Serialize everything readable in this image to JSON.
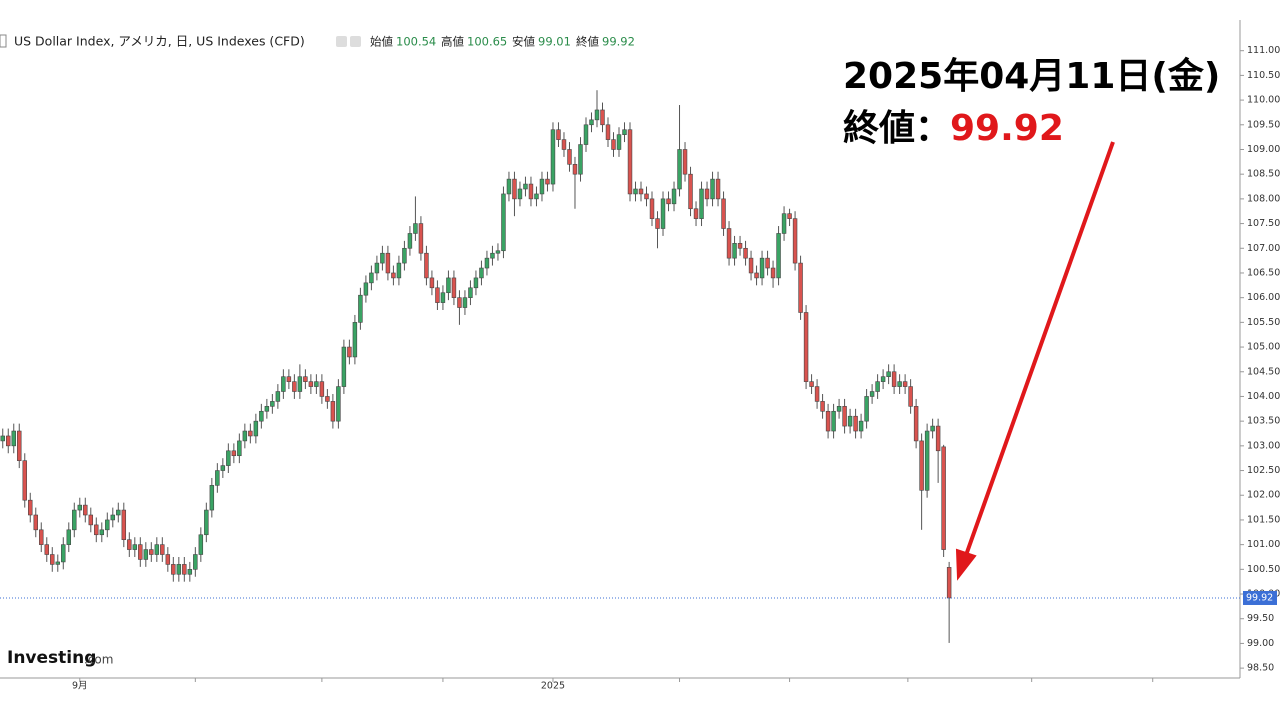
{
  "chart_data": {
    "type": "candlestick",
    "title": "US Dollar Index, アメリカ, 日, US Indexes (CFD)",
    "ohlc_labels": [
      "始値",
      "高値",
      "安値",
      "終値"
    ],
    "annotation": {
      "date": "2025年04月11日(金)",
      "label": "終値："
    },
    "watermark": {
      "name": "Investing",
      "suffix": ".com"
    },
    "up_color": "#3aa364",
    "down_color": "#d9534f",
    "xlim": [
      -0.5,
      224.5
    ],
    "xticks": [
      {
        "value": 14,
        "label": "9月"
      },
      {
        "value": 35,
        "label": null
      },
      {
        "value": 58,
        "label": null
      },
      {
        "value": 80,
        "label": null
      },
      {
        "value": 100,
        "label": "2025"
      },
      {
        "value": 123,
        "label": null
      },
      {
        "value": 143,
        "label": null
      },
      {
        "value": 164.5,
        "label": null
      },
      {
        "value": 187,
        "label": null
      },
      {
        "value": 209,
        "label": null
      }
    ],
    "ylim": [
      98.3,
      111.5
    ],
    "yticks": [
      {
        "value": 98.5,
        "label": "98.50"
      },
      {
        "value": 99,
        "label": "99.00"
      },
      {
        "value": 99.5,
        "label": "99.50"
      },
      {
        "value": 100,
        "label": "100.00"
      },
      {
        "value": 100.5,
        "label": "100.50"
      },
      {
        "value": 101,
        "label": "101.00"
      },
      {
        "value": 101.5,
        "label": "101.50"
      },
      {
        "value": 102,
        "label": "102.00"
      },
      {
        "value": 102.5,
        "label": "102.50"
      },
      {
        "value": 103,
        "label": "103.00"
      },
      {
        "value": 103.5,
        "label": "103.50"
      },
      {
        "value": 104,
        "label": "104.00"
      },
      {
        "value": 104.5,
        "label": "104.50"
      },
      {
        "value": 105,
        "label": "105.00"
      },
      {
        "value": 105.5,
        "label": "105.50"
      },
      {
        "value": 106,
        "label": "106.00"
      },
      {
        "value": 106.5,
        "label": "106.50"
      },
      {
        "value": 107,
        "label": "107.00"
      },
      {
        "value": 107.5,
        "label": "107.50"
      },
      {
        "value": 108,
        "label": "108.00"
      },
      {
        "value": 108.5,
        "label": "108.50"
      },
      {
        "value": 109,
        "label": "109.00"
      },
      {
        "value": 109.5,
        "label": "109.50"
      },
      {
        "value": 110,
        "label": "110.00"
      },
      {
        "value": 110.5,
        "label": "110.50"
      },
      {
        "value": 111,
        "label": "111.00"
      }
    ],
    "candles": [
      [
        103.1,
        103.35,
        102.95,
        103.2
      ],
      [
        103.2,
        103.35,
        102.85,
        103.0
      ],
      [
        103.0,
        103.45,
        102.85,
        103.3
      ],
      [
        103.3,
        103.45,
        102.55,
        102.7
      ],
      [
        102.7,
        102.85,
        101.75,
        101.9
      ],
      [
        101.9,
        102.05,
        101.45,
        101.6
      ],
      [
        101.6,
        101.75,
        101.15,
        101.3
      ],
      [
        101.3,
        101.45,
        100.85,
        101.0
      ],
      [
        101.0,
        101.15,
        100.65,
        100.8
      ],
      [
        100.8,
        100.95,
        100.45,
        100.6
      ],
      [
        100.6,
        100.8,
        100.45,
        100.65
      ],
      [
        100.65,
        101.15,
        100.5,
        101.0
      ],
      [
        101.0,
        101.45,
        100.85,
        101.3
      ],
      [
        101.3,
        101.85,
        101.15,
        101.7
      ],
      [
        101.7,
        101.95,
        101.55,
        101.8
      ],
      [
        101.8,
        101.95,
        101.45,
        101.6
      ],
      [
        101.6,
        101.75,
        101.25,
        101.4
      ],
      [
        101.4,
        101.55,
        101.05,
        101.2
      ],
      [
        101.2,
        101.45,
        101.05,
        101.3
      ],
      [
        101.3,
        101.65,
        101.15,
        101.5
      ],
      [
        101.5,
        101.75,
        101.35,
        101.6
      ],
      [
        101.6,
        101.85,
        101.45,
        101.7
      ],
      [
        101.7,
        101.85,
        100.95,
        101.1
      ],
      [
        101.1,
        101.25,
        100.75,
        100.9
      ],
      [
        100.9,
        101.15,
        100.75,
        101.0
      ],
      [
        101.0,
        101.15,
        100.55,
        100.7
      ],
      [
        100.7,
        101.05,
        100.55,
        100.9
      ],
      [
        100.9,
        101.05,
        100.65,
        100.8
      ],
      [
        100.8,
        101.15,
        100.65,
        101.0
      ],
      [
        101.0,
        101.15,
        100.65,
        100.8
      ],
      [
        100.8,
        100.95,
        100.45,
        100.6
      ],
      [
        100.6,
        100.75,
        100.25,
        100.4
      ],
      [
        100.4,
        100.75,
        100.25,
        100.6
      ],
      [
        100.6,
        100.75,
        100.25,
        100.4
      ],
      [
        100.4,
        100.65,
        100.25,
        100.5
      ],
      [
        100.5,
        100.95,
        100.35,
        100.8
      ],
      [
        100.8,
        101.35,
        100.65,
        101.2
      ],
      [
        101.2,
        101.85,
        101.05,
        101.7
      ],
      [
        101.7,
        102.35,
        101.55,
        102.2
      ],
      [
        102.2,
        102.65,
        102.05,
        102.5
      ],
      [
        102.5,
        102.75,
        102.35,
        102.6
      ],
      [
        102.6,
        103.05,
        102.45,
        102.9
      ],
      [
        102.9,
        103.05,
        102.65,
        102.8
      ],
      [
        102.8,
        103.25,
        102.65,
        103.1
      ],
      [
        103.1,
        103.45,
        102.95,
        103.3
      ],
      [
        103.3,
        103.45,
        103.05,
        103.2
      ],
      [
        103.2,
        103.65,
        103.05,
        103.5
      ],
      [
        103.5,
        103.85,
        103.35,
        103.7
      ],
      [
        103.7,
        103.95,
        103.55,
        103.8
      ],
      [
        103.8,
        104.05,
        103.65,
        103.9
      ],
      [
        103.9,
        104.25,
        103.75,
        104.1
      ],
      [
        104.1,
        104.55,
        103.95,
        104.4
      ],
      [
        104.4,
        104.55,
        104.15,
        104.3
      ],
      [
        104.3,
        104.45,
        103.95,
        104.1
      ],
      [
        104.1,
        104.65,
        103.95,
        104.4
      ],
      [
        104.4,
        104.55,
        104.15,
        104.3
      ],
      [
        104.3,
        104.45,
        104.05,
        104.2
      ],
      [
        104.2,
        104.45,
        104.05,
        104.3
      ],
      [
        104.3,
        104.45,
        103.85,
        104.0
      ],
      [
        104.0,
        104.15,
        103.75,
        103.9
      ],
      [
        103.9,
        104.05,
        103.35,
        103.5
      ],
      [
        103.5,
        104.35,
        103.35,
        104.2
      ],
      [
        104.2,
        105.15,
        104.05,
        105.0
      ],
      [
        105.0,
        105.15,
        104.65,
        104.8
      ],
      [
        104.8,
        105.65,
        104.65,
        105.5
      ],
      [
        105.5,
        106.2,
        105.35,
        106.05
      ],
      [
        106.05,
        106.45,
        105.9,
        106.3
      ],
      [
        106.3,
        106.65,
        106.15,
        106.5
      ],
      [
        106.5,
        106.85,
        106.35,
        106.7
      ],
      [
        106.7,
        107.05,
        106.55,
        106.9
      ],
      [
        106.9,
        107.05,
        106.35,
        106.5
      ],
      [
        106.5,
        106.65,
        106.25,
        106.4
      ],
      [
        106.4,
        106.85,
        106.25,
        106.7
      ],
      [
        106.7,
        107.15,
        106.55,
        107.0
      ],
      [
        107.0,
        107.45,
        106.85,
        107.3
      ],
      [
        107.3,
        108.05,
        107.15,
        107.5
      ],
      [
        107.5,
        107.65,
        106.75,
        106.9
      ],
      [
        106.9,
        107.05,
        106.25,
        106.4
      ],
      [
        106.4,
        106.55,
        106.05,
        106.2
      ],
      [
        106.2,
        106.35,
        105.75,
        105.9
      ],
      [
        105.9,
        106.25,
        105.75,
        106.1
      ],
      [
        106.1,
        106.55,
        105.95,
        106.4
      ],
      [
        106.4,
        106.55,
        105.85,
        106.0
      ],
      [
        106.0,
        106.15,
        105.45,
        105.8
      ],
      [
        105.8,
        106.15,
        105.65,
        106.0
      ],
      [
        106.0,
        106.35,
        105.85,
        106.2
      ],
      [
        106.2,
        106.55,
        106.05,
        106.4
      ],
      [
        106.4,
        106.75,
        106.25,
        106.6
      ],
      [
        106.6,
        106.95,
        106.45,
        106.8
      ],
      [
        106.8,
        107.05,
        106.65,
        106.9
      ],
      [
        106.9,
        107.1,
        106.75,
        106.95
      ],
      [
        106.95,
        108.25,
        106.8,
        108.1
      ],
      [
        108.1,
        108.55,
        107.95,
        108.4
      ],
      [
        108.4,
        108.55,
        107.65,
        108.0
      ],
      [
        108.0,
        108.35,
        107.85,
        108.2
      ],
      [
        108.2,
        108.45,
        108.05,
        108.3
      ],
      [
        108.3,
        108.45,
        107.85,
        108.0
      ],
      [
        108.0,
        108.25,
        107.85,
        108.1
      ],
      [
        108.1,
        108.55,
        107.95,
        108.4
      ],
      [
        108.4,
        108.55,
        108.15,
        108.3
      ],
      [
        108.3,
        109.55,
        108.15,
        109.4
      ],
      [
        109.4,
        109.55,
        109.05,
        109.2
      ],
      [
        109.2,
        109.35,
        108.85,
        109.0
      ],
      [
        109.0,
        109.15,
        108.55,
        108.7
      ],
      [
        108.7,
        108.85,
        107.8,
        108.5
      ],
      [
        108.5,
        109.25,
        108.35,
        109.1
      ],
      [
        109.1,
        109.65,
        108.95,
        109.5
      ],
      [
        109.5,
        109.75,
        109.35,
        109.6
      ],
      [
        109.6,
        110.2,
        109.45,
        109.8
      ],
      [
        109.8,
        109.95,
        109.35,
        109.5
      ],
      [
        109.5,
        109.65,
        109.05,
        109.2
      ],
      [
        109.2,
        109.35,
        108.85,
        109.0
      ],
      [
        109.0,
        109.45,
        108.85,
        109.3
      ],
      [
        109.3,
        109.55,
        109.15,
        109.4
      ],
      [
        109.4,
        109.55,
        107.95,
        108.1
      ],
      [
        108.1,
        108.35,
        107.95,
        108.2
      ],
      [
        108.2,
        108.35,
        107.95,
        108.1
      ],
      [
        108.1,
        108.25,
        107.85,
        108.0
      ],
      [
        108.0,
        108.15,
        107.45,
        107.6
      ],
      [
        107.6,
        107.75,
        107.0,
        107.4
      ],
      [
        107.4,
        108.15,
        107.25,
        108.0
      ],
      [
        108.0,
        108.15,
        107.75,
        107.9
      ],
      [
        107.9,
        108.35,
        107.75,
        108.2
      ],
      [
        108.2,
        109.9,
        108.05,
        109.0
      ],
      [
        109.0,
        109.15,
        108.35,
        108.5
      ],
      [
        108.5,
        108.65,
        107.65,
        107.8
      ],
      [
        107.8,
        107.95,
        107.45,
        107.6
      ],
      [
        107.6,
        108.35,
        107.45,
        108.2
      ],
      [
        108.2,
        108.35,
        107.85,
        108.0
      ],
      [
        108.0,
        108.55,
        107.85,
        108.4
      ],
      [
        108.4,
        108.55,
        107.85,
        108.0
      ],
      [
        108.0,
        108.15,
        107.25,
        107.4
      ],
      [
        107.4,
        107.55,
        106.65,
        106.8
      ],
      [
        106.8,
        107.25,
        106.65,
        107.1
      ],
      [
        107.1,
        107.25,
        106.85,
        107.0
      ],
      [
        107.0,
        107.15,
        106.65,
        106.8
      ],
      [
        106.8,
        106.95,
        106.35,
        106.5
      ],
      [
        106.5,
        106.65,
        106.25,
        106.4
      ],
      [
        106.4,
        106.95,
        106.25,
        106.8
      ],
      [
        106.8,
        106.95,
        106.45,
        106.6
      ],
      [
        106.6,
        106.75,
        106.2,
        106.4
      ],
      [
        106.4,
        107.45,
        106.25,
        107.3
      ],
      [
        107.3,
        107.85,
        107.15,
        107.7
      ],
      [
        107.7,
        107.8,
        107.45,
        107.6
      ],
      [
        107.6,
        107.75,
        106.55,
        106.7
      ],
      [
        106.7,
        106.85,
        105.55,
        105.7
      ],
      [
        105.7,
        105.85,
        104.15,
        104.3
      ],
      [
        104.3,
        104.45,
        104.05,
        104.2
      ],
      [
        104.2,
        104.35,
        103.75,
        103.9
      ],
      [
        103.9,
        104.05,
        103.55,
        103.7
      ],
      [
        103.7,
        103.85,
        103.15,
        103.3
      ],
      [
        103.3,
        103.85,
        103.15,
        103.7
      ],
      [
        103.7,
        103.95,
        103.55,
        103.8
      ],
      [
        103.8,
        103.95,
        103.25,
        103.4
      ],
      [
        103.4,
        103.75,
        103.25,
        103.6
      ],
      [
        103.6,
        103.75,
        103.15,
        103.3
      ],
      [
        103.3,
        103.65,
        103.15,
        103.5
      ],
      [
        103.5,
        104.15,
        103.35,
        104.0
      ],
      [
        104.0,
        104.25,
        103.85,
        104.1
      ],
      [
        104.1,
        104.45,
        103.95,
        104.3
      ],
      [
        104.3,
        104.55,
        104.15,
        104.4
      ],
      [
        104.4,
        104.65,
        104.25,
        104.5
      ],
      [
        104.5,
        104.65,
        104.05,
        104.2
      ],
      [
        104.2,
        104.45,
        104.05,
        104.3
      ],
      [
        104.3,
        104.45,
        104.05,
        104.2
      ],
      [
        104.2,
        104.35,
        103.65,
        103.8
      ],
      [
        103.8,
        103.95,
        102.95,
        103.1
      ],
      [
        103.1,
        103.25,
        101.3,
        102.1
      ],
      [
        102.1,
        103.45,
        101.95,
        103.3
      ],
      [
        103.3,
        103.55,
        103.15,
        103.4
      ],
      [
        103.4,
        103.55,
        102.25,
        102.9
      ],
      [
        102.98,
        103.02,
        100.75,
        100.9
      ],
      [
        100.54,
        100.65,
        99.01,
        99.92
      ]
    ]
  }
}
